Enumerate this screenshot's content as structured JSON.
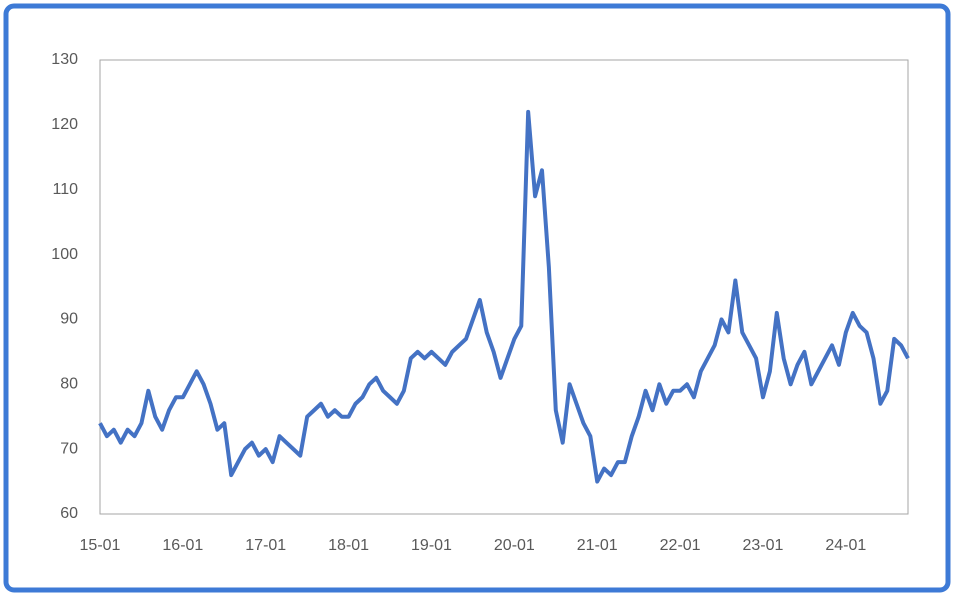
{
  "chart_data": {
    "type": "line",
    "categories": [
      "15-01",
      null,
      null,
      null,
      null,
      null,
      null,
      null,
      null,
      null,
      null,
      null,
      "16-01",
      null,
      null,
      null,
      null,
      null,
      null,
      null,
      null,
      null,
      null,
      null,
      "17-01",
      null,
      null,
      null,
      null,
      null,
      null,
      null,
      null,
      null,
      null,
      null,
      "18-01",
      null,
      null,
      null,
      null,
      null,
      null,
      null,
      null,
      null,
      null,
      null,
      "19-01",
      null,
      null,
      null,
      null,
      null,
      null,
      null,
      null,
      null,
      null,
      null,
      "20-01",
      null,
      null,
      null,
      null,
      null,
      null,
      null,
      null,
      null,
      null,
      null,
      "21-01",
      null,
      null,
      null,
      null,
      null,
      null,
      null,
      null,
      null,
      null,
      null,
      "22-01",
      null,
      null,
      null,
      null,
      null,
      null,
      null,
      null,
      null,
      null,
      null,
      "23-01",
      null,
      null,
      null,
      null,
      null,
      null,
      null,
      null,
      null,
      null,
      null,
      "24-01",
      null,
      null,
      null,
      null,
      null,
      null,
      null,
      null,
      null
    ],
    "values": [
      74,
      72,
      73,
      71,
      73,
      72,
      74,
      79,
      75,
      73,
      76,
      78,
      78,
      80,
      82,
      80,
      77,
      73,
      74,
      66,
      68,
      70,
      71,
      69,
      70,
      68,
      72,
      71,
      70,
      69,
      75,
      76,
      77,
      75,
      76,
      75,
      75,
      77,
      78,
      80,
      81,
      79,
      78,
      77,
      79,
      84,
      85,
      84,
      85,
      84,
      83,
      85,
      86,
      87,
      90,
      93,
      88,
      85,
      81,
      84,
      87,
      89,
      122,
      109,
      113,
      98,
      76,
      71,
      80,
      77,
      74,
      72,
      65,
      67,
      66,
      68,
      68,
      72,
      75,
      79,
      76,
      80,
      77,
      79,
      79,
      80,
      78,
      82,
      84,
      86,
      90,
      88,
      96,
      88,
      86,
      84,
      78,
      82,
      91,
      84,
      80,
      83,
      85,
      80,
      82,
      84,
      86,
      83,
      88,
      91,
      89,
      88,
      84,
      77,
      79,
      87,
      86,
      84
    ],
    "color": "#4472c4",
    "ylim": [
      60,
      130
    ],
    "yticks": [
      60,
      70,
      80,
      90,
      100,
      110,
      120,
      130
    ],
    "grid": false
  }
}
